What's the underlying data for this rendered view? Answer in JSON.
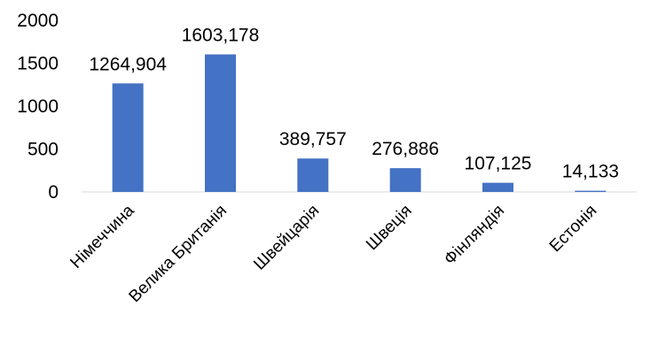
{
  "chart_data": {
    "type": "bar",
    "title": "",
    "xlabel": "",
    "ylabel": "",
    "categories": [
      "Німеччина",
      "Велика Британія",
      "Швейцарія",
      "Швеція",
      "Фінляндія",
      "Естонія"
    ],
    "values": [
      1264.904,
      1603.178,
      389.757,
      276.886,
      107.125,
      14.133
    ],
    "data_labels": [
      "1264,904",
      "1603,178",
      "389,757",
      "276,886",
      "107,125",
      "14,133"
    ],
    "ylim": [
      0,
      2000
    ],
    "yticks": [
      0,
      500,
      1000,
      1500,
      2000
    ],
    "ytick_labels": [
      "0",
      "500",
      "1000",
      "1500",
      "2000"
    ],
    "grid": false,
    "legend": "none",
    "bar_color": "#4472C4",
    "axis_color": "#D9D9D9"
  }
}
